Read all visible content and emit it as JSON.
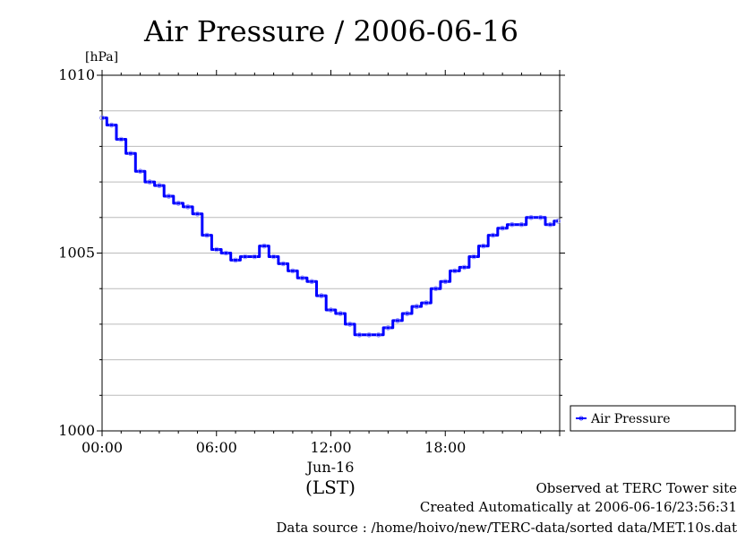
{
  "chart_data": {
    "type": "line",
    "title": "Air Pressure / 2006-06-16",
    "ylabel": "[hPa]",
    "xlabel": "(LST)",
    "x_date_label": "Jun-16",
    "x_ticks": [
      "00:00",
      "06:00",
      "12:00",
      "18:00"
    ],
    "y_ticks": [
      "1010",
      "1005",
      "1000"
    ],
    "ylim": [
      1000,
      1010
    ],
    "xlim": [
      "00:00",
      "23:59"
    ],
    "grid": true,
    "legend_position": "bottom-right",
    "series": [
      {
        "name": "Air Pressure",
        "color": "#0000ff",
        "x": [
          "00:00",
          "00:30",
          "01:00",
          "01:30",
          "02:00",
          "02:30",
          "03:00",
          "03:30",
          "04:00",
          "04:30",
          "05:00",
          "05:30",
          "06:00",
          "06:30",
          "07:00",
          "07:30",
          "08:00",
          "08:30",
          "09:00",
          "09:30",
          "10:00",
          "10:30",
          "11:00",
          "11:30",
          "12:00",
          "12:30",
          "13:00",
          "13:30",
          "14:00",
          "14:30",
          "15:00",
          "15:30",
          "16:00",
          "16:30",
          "17:00",
          "17:30",
          "18:00",
          "18:30",
          "19:00",
          "19:30",
          "20:00",
          "20:30",
          "21:00",
          "21:30",
          "22:00",
          "22:30",
          "23:00",
          "23:30",
          "23:55"
        ],
        "values": [
          1008.8,
          1008.6,
          1008.2,
          1007.8,
          1007.3,
          1007.0,
          1006.9,
          1006.6,
          1006.4,
          1006.3,
          1006.1,
          1005.5,
          1005.1,
          1005.0,
          1004.8,
          1004.9,
          1004.9,
          1005.2,
          1004.9,
          1004.7,
          1004.5,
          1004.3,
          1004.2,
          1003.8,
          1003.4,
          1003.3,
          1003.0,
          1002.7,
          1002.7,
          1002.7,
          1002.9,
          1003.1,
          1003.3,
          1003.5,
          1003.6,
          1004.0,
          1004.2,
          1004.5,
          1004.6,
          1004.9,
          1005.2,
          1005.5,
          1005.7,
          1005.8,
          1005.8,
          1006.0,
          1006.0,
          1005.8,
          1005.9
        ]
      }
    ]
  },
  "footer": {
    "line1": "Observed at TERC Tower site",
    "line2": "Created Automatically at 2006-06-16/23:56:31",
    "line3": "Data source : /home/hoivo/new/TERC-data/sorted data/MET.10s.dat"
  }
}
